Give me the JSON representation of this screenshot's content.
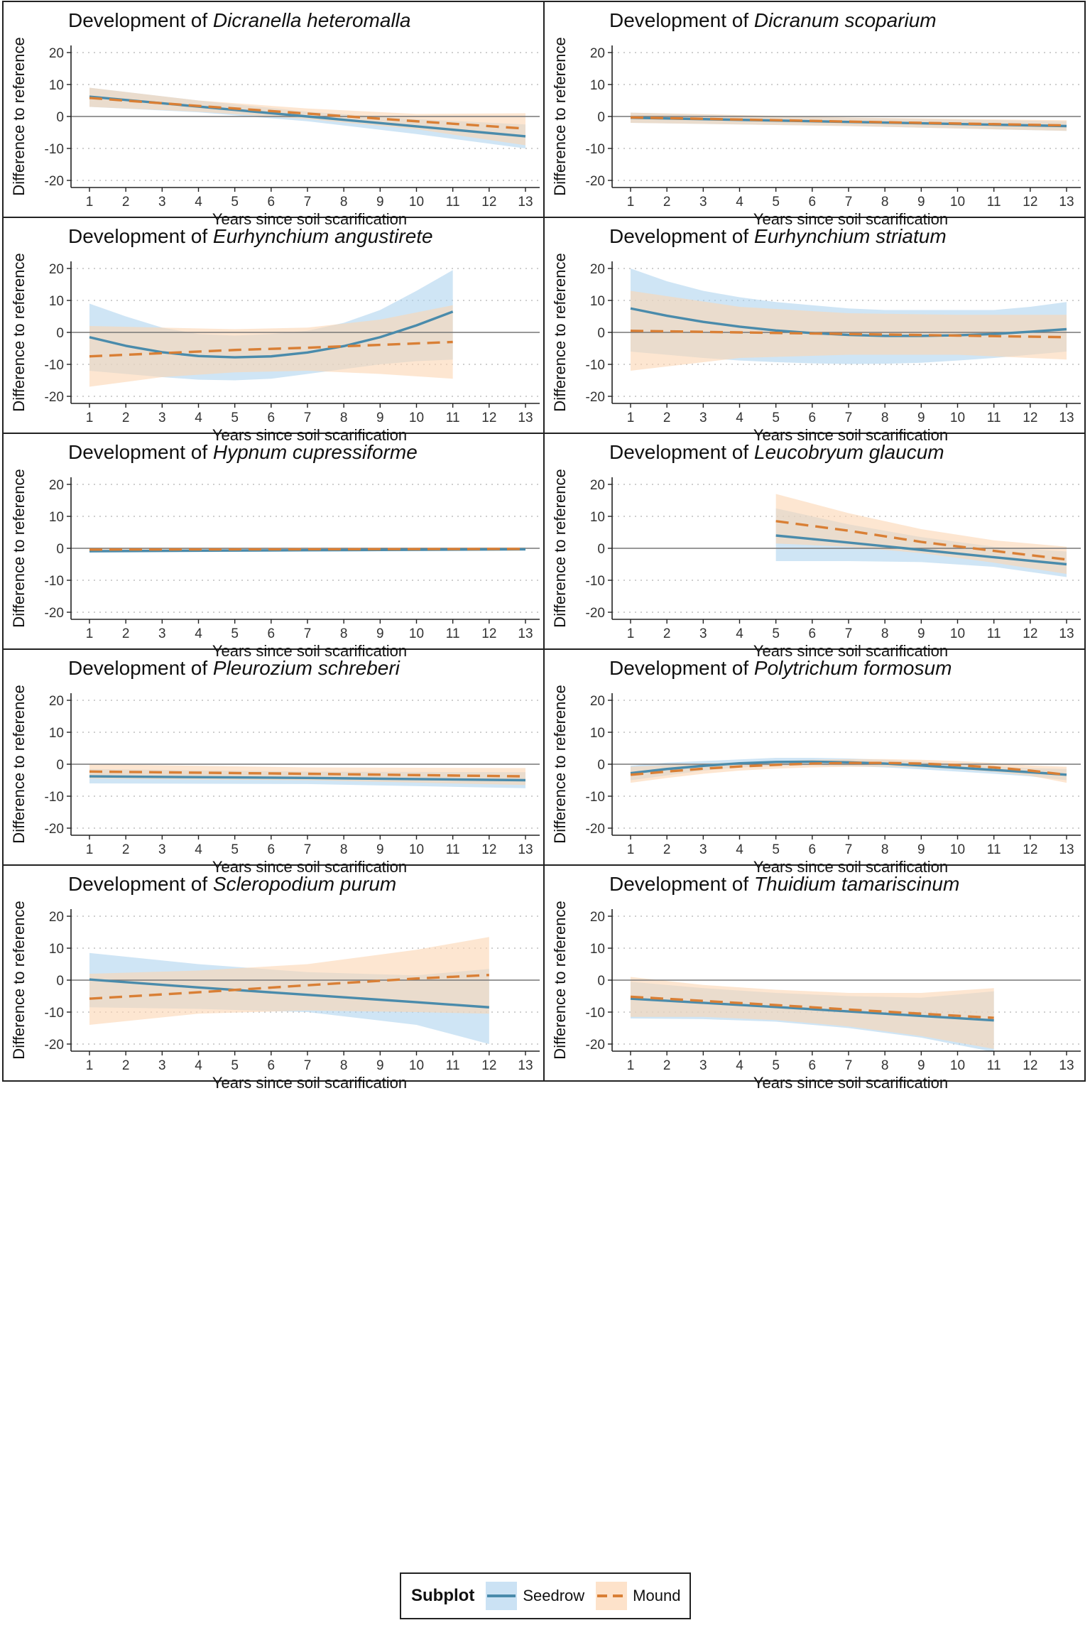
{
  "legend": {
    "title": "Subplot",
    "seedrow_label": "Seedrow",
    "mound_label": "Mound"
  },
  "colors": {
    "seedrow_line": "#4a8bab",
    "seedrow_band": "#a8cfed",
    "mound_line": "#d97f35",
    "mound_band": "#fcd6b3",
    "grid": "#bfbfbf",
    "zero_line": "#777777"
  },
  "chart_data": [
    {
      "type": "line",
      "title_prefix": "Development of ",
      "title_species": "Dicranella heteromalla",
      "xlabel": "Years since soil scarification",
      "ylabel": "Difference to reference",
      "xlim": [
        1,
        13
      ],
      "ylim": [
        -20,
        20
      ],
      "x_ticks": [
        1,
        2,
        3,
        4,
        5,
        6,
        7,
        8,
        9,
        10,
        11,
        12,
        13
      ],
      "y_ticks": [
        -20,
        -10,
        0,
        10,
        20
      ],
      "series": [
        {
          "name": "Seedrow",
          "style": "solid",
          "x": [
            1,
            4,
            7,
            10,
            13
          ],
          "y": [
            6.2,
            3.1,
            0.0,
            -3.1,
            -6.2
          ],
          "lower": [
            3.0,
            1.3,
            -1.5,
            -5.5,
            -10.0
          ],
          "upper": [
            9.0,
            5.0,
            1.5,
            -0.8,
            -2.5
          ]
        },
        {
          "name": "Mound",
          "style": "dashed",
          "x": [
            1,
            4,
            7,
            10,
            13
          ],
          "y": [
            5.8,
            3.3,
            0.9,
            -1.5,
            -3.8
          ],
          "lower": [
            3.0,
            1.5,
            -0.8,
            -4.0,
            -9.0
          ],
          "upper": [
            9.0,
            5.0,
            2.5,
            0.8,
            1.0
          ]
        }
      ]
    },
    {
      "type": "line",
      "title_prefix": "Development of ",
      "title_species": "Dicranum scoparium",
      "xlabel": "Years since soil scarification",
      "ylabel": "Difference to reference",
      "xlim": [
        1,
        13
      ],
      "ylim": [
        -20,
        20
      ],
      "x_ticks": [
        1,
        2,
        3,
        4,
        5,
        6,
        7,
        8,
        9,
        10,
        11,
        12,
        13
      ],
      "y_ticks": [
        -20,
        -10,
        0,
        10,
        20
      ],
      "series": [
        {
          "name": "Seedrow",
          "style": "solid",
          "x": [
            1,
            7,
            13
          ],
          "y": [
            -0.4,
            -1.7,
            -3.0
          ],
          "lower": [
            -2.0,
            -3.0,
            -4.5
          ],
          "upper": [
            1.2,
            -0.4,
            -1.5
          ]
        },
        {
          "name": "Mound",
          "style": "dashed",
          "x": [
            1,
            7,
            13
          ],
          "y": [
            -0.3,
            -1.6,
            -2.8
          ],
          "lower": [
            -2.0,
            -3.0,
            -4.5
          ],
          "upper": [
            1.2,
            -0.3,
            -1.2
          ]
        }
      ]
    },
    {
      "type": "line",
      "title_prefix": "Development of ",
      "title_species": "Eurhynchium angustirete",
      "xlabel": "Years since soil scarification",
      "ylabel": "Difference to reference",
      "xlim": [
        1,
        13
      ],
      "ylim": [
        -20,
        20
      ],
      "x_ticks": [
        1,
        2,
        3,
        4,
        5,
        6,
        7,
        8,
        9,
        10,
        11,
        12,
        13
      ],
      "y_ticks": [
        -20,
        -10,
        0,
        10,
        20
      ],
      "series": [
        {
          "name": "Seedrow",
          "style": "solid",
          "x": [
            1,
            2,
            3,
            4,
            5,
            6,
            7,
            8,
            9,
            10,
            11
          ],
          "y": [
            -1.5,
            -4.2,
            -6.2,
            -7.4,
            -7.8,
            -7.5,
            -6.3,
            -4.3,
            -1.5,
            2.2,
            6.5
          ],
          "lower": [
            -12.0,
            -13.0,
            -14.0,
            -14.8,
            -15.0,
            -14.5,
            -13.0,
            -11.5,
            -10.0,
            -9.0,
            -8.5
          ],
          "upper": [
            9.0,
            5.0,
            1.5,
            -0.5,
            -1.0,
            -0.5,
            0.5,
            3.0,
            7.0,
            13.0,
            19.5
          ]
        },
        {
          "name": "Mound",
          "style": "dashed",
          "x": [
            1,
            3,
            5,
            7,
            9,
            11
          ],
          "y": [
            -7.5,
            -6.5,
            -5.5,
            -4.8,
            -3.9,
            -3.0
          ],
          "lower": [
            -17.0,
            -14.0,
            -12.5,
            -12.0,
            -13.0,
            -14.5
          ],
          "upper": [
            2.0,
            1.5,
            1.0,
            1.5,
            4.0,
            8.5
          ]
        }
      ]
    },
    {
      "type": "line",
      "title_prefix": "Development of ",
      "title_species": "Eurhynchium striatum",
      "xlabel": "Years since soil scarification",
      "ylabel": "Difference to reference",
      "xlim": [
        1,
        13
      ],
      "ylim": [
        -20,
        20
      ],
      "x_ticks": [
        1,
        2,
        3,
        4,
        5,
        6,
        7,
        8,
        9,
        10,
        11,
        12,
        13
      ],
      "y_ticks": [
        -20,
        -10,
        0,
        10,
        20
      ],
      "series": [
        {
          "name": "Seedrow",
          "style": "solid",
          "x": [
            1,
            2,
            3,
            4,
            5,
            6,
            7,
            8,
            9,
            10,
            11,
            12,
            13
          ],
          "y": [
            7.5,
            5.2,
            3.3,
            1.8,
            0.6,
            -0.2,
            -0.8,
            -1.1,
            -1.1,
            -0.9,
            -0.5,
            0.2,
            1.0
          ],
          "lower": [
            -6.0,
            -7.0,
            -8.0,
            -8.8,
            -9.3,
            -9.7,
            -9.9,
            -9.8,
            -9.5,
            -8.8,
            -8.0,
            -7.0,
            -6.0
          ],
          "upper": [
            20.0,
            16.0,
            13.0,
            11.0,
            9.5,
            8.5,
            7.5,
            7.0,
            7.0,
            7.0,
            7.0,
            8.0,
            9.5
          ]
        },
        {
          "name": "Mound",
          "style": "dashed",
          "x": [
            1,
            4,
            7,
            10,
            13
          ],
          "y": [
            0.5,
            0.0,
            -0.5,
            -1.0,
            -1.5
          ],
          "lower": [
            -12.0,
            -8.0,
            -7.0,
            -7.0,
            -8.5
          ],
          "upper": [
            13.0,
            8.0,
            6.0,
            5.5,
            5.5
          ]
        }
      ]
    },
    {
      "type": "line",
      "title_prefix": "Development of ",
      "title_species": "Hypnum cupressiforme",
      "xlabel": "Years since soil scarification",
      "ylabel": "Difference to reference",
      "xlim": [
        1,
        13
      ],
      "ylim": [
        -20,
        20
      ],
      "x_ticks": [
        1,
        2,
        3,
        4,
        5,
        6,
        7,
        8,
        9,
        10,
        11,
        12,
        13
      ],
      "y_ticks": [
        -20,
        -10,
        0,
        10,
        20
      ],
      "series": [
        {
          "name": "Seedrow",
          "style": "solid",
          "x": [
            1,
            7,
            13
          ],
          "y": [
            -0.9,
            -0.6,
            -0.3
          ],
          "lower": [
            -1.4,
            -1.0,
            -0.8
          ],
          "upper": [
            -0.4,
            -0.2,
            0.2
          ]
        },
        {
          "name": "Mound",
          "style": "dashed",
          "x": [
            1,
            7,
            13
          ],
          "y": [
            -0.4,
            -0.3,
            -0.2
          ],
          "lower": [
            -1.0,
            -0.7,
            -0.7
          ],
          "upper": [
            0.2,
            0.1,
            0.3
          ]
        }
      ]
    },
    {
      "type": "line",
      "title_prefix": "Development of ",
      "title_species": "Leucobryum glaucum",
      "xlabel": "Years since soil scarification",
      "ylabel": "Difference to reference",
      "xlim": [
        1,
        13
      ],
      "ylim": [
        -20,
        20
      ],
      "x_ticks": [
        1,
        2,
        3,
        4,
        5,
        6,
        7,
        8,
        9,
        10,
        11,
        12,
        13
      ],
      "y_ticks": [
        -20,
        -10,
        0,
        10,
        20
      ],
      "series": [
        {
          "name": "Seedrow",
          "style": "solid",
          "x": [
            5,
            7,
            9,
            11,
            13
          ],
          "y": [
            4.0,
            1.8,
            -0.5,
            -2.8,
            -5.0
          ],
          "lower": [
            -4.0,
            -4.0,
            -4.3,
            -5.8,
            -9.0
          ],
          "upper": [
            12.5,
            7.5,
            3.5,
            0.5,
            -1.0
          ]
        },
        {
          "name": "Mound",
          "style": "dashed",
          "x": [
            5,
            7,
            9,
            11,
            13
          ],
          "y": [
            8.5,
            5.5,
            2.0,
            -0.8,
            -3.5
          ],
          "lower": [
            1.5,
            0.5,
            -1.5,
            -4.5,
            -8.0
          ],
          "upper": [
            17.0,
            11.0,
            6.0,
            2.5,
            0.5
          ]
        }
      ]
    },
    {
      "type": "line",
      "title_prefix": "Development of ",
      "title_species": "Pleurozium schreberi",
      "xlabel": "Years since soil scarification",
      "ylabel": "Difference to reference",
      "xlim": [
        1,
        13
      ],
      "ylim": [
        -20,
        20
      ],
      "x_ticks": [
        1,
        2,
        3,
        4,
        5,
        6,
        7,
        8,
        9,
        10,
        11,
        12,
        13
      ],
      "y_ticks": [
        -20,
        -10,
        0,
        10,
        20
      ],
      "series": [
        {
          "name": "Seedrow",
          "style": "solid",
          "x": [
            1,
            7,
            13
          ],
          "y": [
            -3.8,
            -4.3,
            -5.0
          ],
          "lower": [
            -6.0,
            -6.2,
            -7.5
          ],
          "upper": [
            -1.5,
            -2.3,
            -2.5
          ]
        },
        {
          "name": "Mound",
          "style": "dashed",
          "x": [
            1,
            7,
            13
          ],
          "y": [
            -2.3,
            -3.0,
            -3.8
          ],
          "lower": [
            -4.5,
            -5.0,
            -6.5
          ],
          "upper": [
            0.0,
            -1.0,
            -1.2
          ]
        }
      ]
    },
    {
      "type": "line",
      "title_prefix": "Development of ",
      "title_species": "Polytrichum formosum",
      "xlabel": "Years since soil scarification",
      "ylabel": "Difference to reference",
      "xlim": [
        1,
        13
      ],
      "ylim": [
        -20,
        20
      ],
      "x_ticks": [
        1,
        2,
        3,
        4,
        5,
        6,
        7,
        8,
        9,
        10,
        11,
        12,
        13
      ],
      "y_ticks": [
        -20,
        -10,
        0,
        10,
        20
      ],
      "series": [
        {
          "name": "Seedrow",
          "style": "solid",
          "x": [
            1,
            2,
            3,
            4,
            5,
            6,
            7,
            8,
            9,
            10,
            11,
            12,
            13
          ],
          "y": [
            -2.8,
            -1.5,
            -0.5,
            0.3,
            0.7,
            0.8,
            0.6,
            0.2,
            -0.4,
            -1.1,
            -1.8,
            -2.5,
            -3.3
          ],
          "lower": [
            -5.0,
            -3.5,
            -2.0,
            -1.0,
            -0.5,
            -0.4,
            -0.6,
            -1.0,
            -1.6,
            -2.3,
            -3.0,
            -3.8,
            -5.0
          ],
          "upper": [
            -0.5,
            0.5,
            1.0,
            1.5,
            2.0,
            2.0,
            1.8,
            1.4,
            0.8,
            0.1,
            -0.6,
            -1.2,
            -1.5
          ]
        },
        {
          "name": "Mound",
          "style": "dashed",
          "x": [
            1,
            2,
            3,
            4,
            5,
            6,
            7,
            8,
            9,
            10,
            11,
            12,
            13
          ],
          "y": [
            -3.3,
            -2.3,
            -1.4,
            -0.7,
            -0.2,
            0.2,
            0.4,
            0.4,
            0.2,
            -0.3,
            -1.0,
            -2.0,
            -3.3
          ],
          "lower": [
            -5.8,
            -4.3,
            -3.0,
            -2.0,
            -1.4,
            -1.0,
            -0.8,
            -0.8,
            -1.0,
            -1.6,
            -2.4,
            -3.6,
            -5.8
          ],
          "upper": [
            -0.8,
            -0.3,
            0.2,
            0.6,
            1.0,
            1.4,
            1.6,
            1.6,
            1.4,
            1.0,
            0.4,
            -0.4,
            -0.8
          ]
        }
      ]
    },
    {
      "type": "line",
      "title_prefix": "Development of ",
      "title_species": "Scleropodium purum",
      "xlabel": "Years since soil scarification",
      "ylabel": "Difference to reference",
      "xlim": [
        1,
        13
      ],
      "ylim": [
        -20,
        20
      ],
      "x_ticks": [
        1,
        2,
        3,
        4,
        5,
        6,
        7,
        8,
        9,
        10,
        11,
        12,
        13
      ],
      "y_ticks": [
        -20,
        -10,
        0,
        10,
        20
      ],
      "series": [
        {
          "name": "Seedrow",
          "style": "solid",
          "x": [
            1,
            4,
            7,
            10,
            12
          ],
          "y": [
            0.2,
            -2.3,
            -4.6,
            -6.9,
            -8.5
          ],
          "lower": [
            -8.5,
            -9.0,
            -10.0,
            -14.0,
            -20.0
          ],
          "upper": [
            8.5,
            5.0,
            2.5,
            1.5,
            3.5
          ]
        },
        {
          "name": "Mound",
          "style": "dashed",
          "x": [
            1,
            4,
            7,
            10,
            12
          ],
          "y": [
            -5.8,
            -3.8,
            -1.6,
            0.5,
            1.6
          ],
          "lower": [
            -14.0,
            -10.5,
            -9.5,
            -10.0,
            -10.5
          ],
          "upper": [
            2.0,
            3.0,
            5.0,
            9.5,
            13.5
          ]
        }
      ]
    },
    {
      "type": "line",
      "title_prefix": "Development of ",
      "title_species": "Thuidium tamariscinum",
      "xlabel": "Years since soil scarification",
      "ylabel": "Difference to reference",
      "xlim": [
        1,
        13
      ],
      "ylim": [
        -20,
        20
      ],
      "x_ticks": [
        1,
        2,
        3,
        4,
        5,
        6,
        7,
        8,
        9,
        10,
        11,
        12,
        13
      ],
      "y_ticks": [
        -20,
        -10,
        0,
        10,
        20
      ],
      "series": [
        {
          "name": "Seedrow",
          "style": "solid",
          "x": [
            1,
            3,
            5,
            7,
            9,
            11
          ],
          "y": [
            -5.8,
            -7.1,
            -8.4,
            -9.8,
            -11.2,
            -12.6
          ],
          "lower": [
            -12.0,
            -12.2,
            -13.0,
            -15.0,
            -18.0,
            -22.5
          ],
          "upper": [
            -0.5,
            -2.5,
            -4.0,
            -5.0,
            -5.5,
            -3.5
          ]
        },
        {
          "name": "Mound",
          "style": "dashed",
          "x": [
            1,
            3,
            5,
            7,
            9,
            11
          ],
          "y": [
            -5.2,
            -6.5,
            -7.8,
            -9.2,
            -10.5,
            -11.8
          ],
          "lower": [
            -11.5,
            -11.5,
            -12.5,
            -14.5,
            -17.5,
            -21.5
          ],
          "upper": [
            1.0,
            -1.5,
            -3.0,
            -4.0,
            -4.0,
            -2.5
          ]
        }
      ]
    }
  ]
}
